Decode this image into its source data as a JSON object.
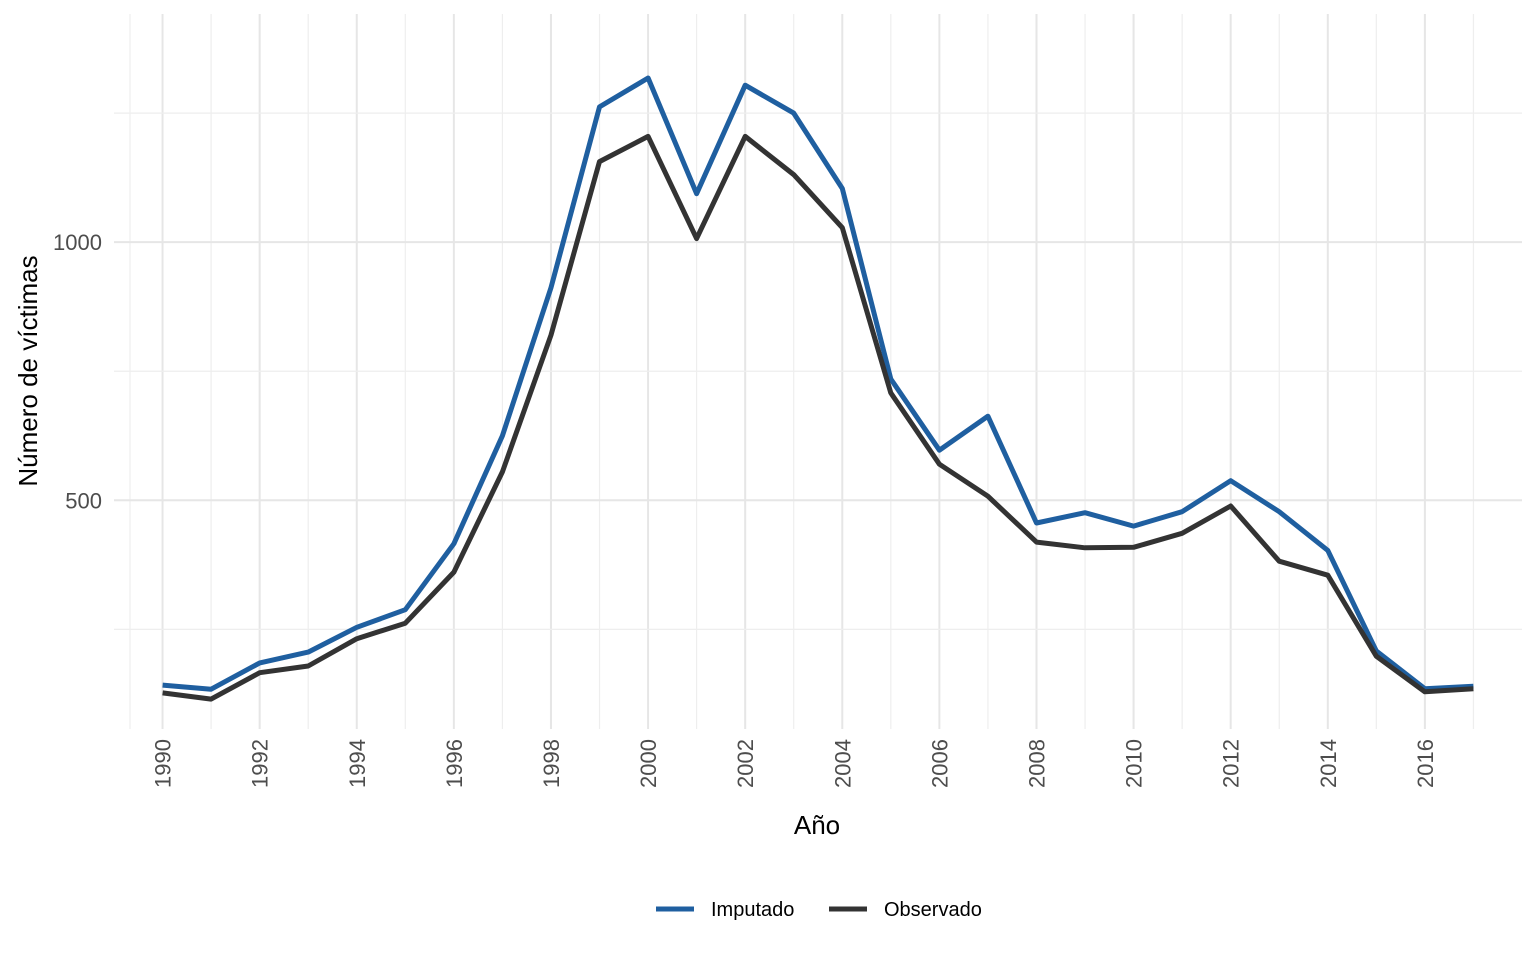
{
  "chart_data": {
    "type": "line",
    "xlabel": "Año",
    "ylabel": "Número de víctimas",
    "xlim": [
      1989,
      1990.0,
      2018
    ],
    "ylim": [
      57,
      1442
    ],
    "x_ticks": [
      1990,
      1992,
      1994,
      1996,
      1998,
      2000,
      2002,
      2004,
      2006,
      2008,
      2010,
      2012,
      2014,
      2016
    ],
    "y_ticks": [
      500,
      1000
    ],
    "y_minor_ticks": [
      250,
      750,
      1250
    ],
    "grid": true,
    "legend_position": "bottom",
    "x": [
      1990,
      1991,
      1992,
      1993,
      1994,
      1995,
      1996,
      1997,
      1998,
      1999,
      2000,
      2001,
      2002,
      2003,
      2004,
      2005,
      2006,
      2007,
      2008,
      2009,
      2010,
      2011,
      2012,
      2013,
      2014,
      2015,
      2016,
      2017
    ],
    "series": [
      {
        "name": "Imputado",
        "color": "#1f5fa0",
        "values": [
          142,
          134,
          185,
          206,
          254,
          288,
          416,
          625,
          912,
          1262,
          1318,
          1094,
          1304,
          1250,
          1104,
          735,
          597,
          663,
          456,
          476,
          450,
          478,
          538,
          478,
          403,
          208,
          135,
          140
        ]
      },
      {
        "name": "Observado",
        "color": "#333333",
        "values": [
          127,
          115,
          166,
          179,
          232,
          262,
          361,
          555,
          820,
          1156,
          1205,
          1007,
          1205,
          1131,
          1028,
          708,
          570,
          508,
          419,
          408,
          409,
          436,
          489,
          382,
          355,
          198,
          129,
          135
        ]
      }
    ]
  }
}
